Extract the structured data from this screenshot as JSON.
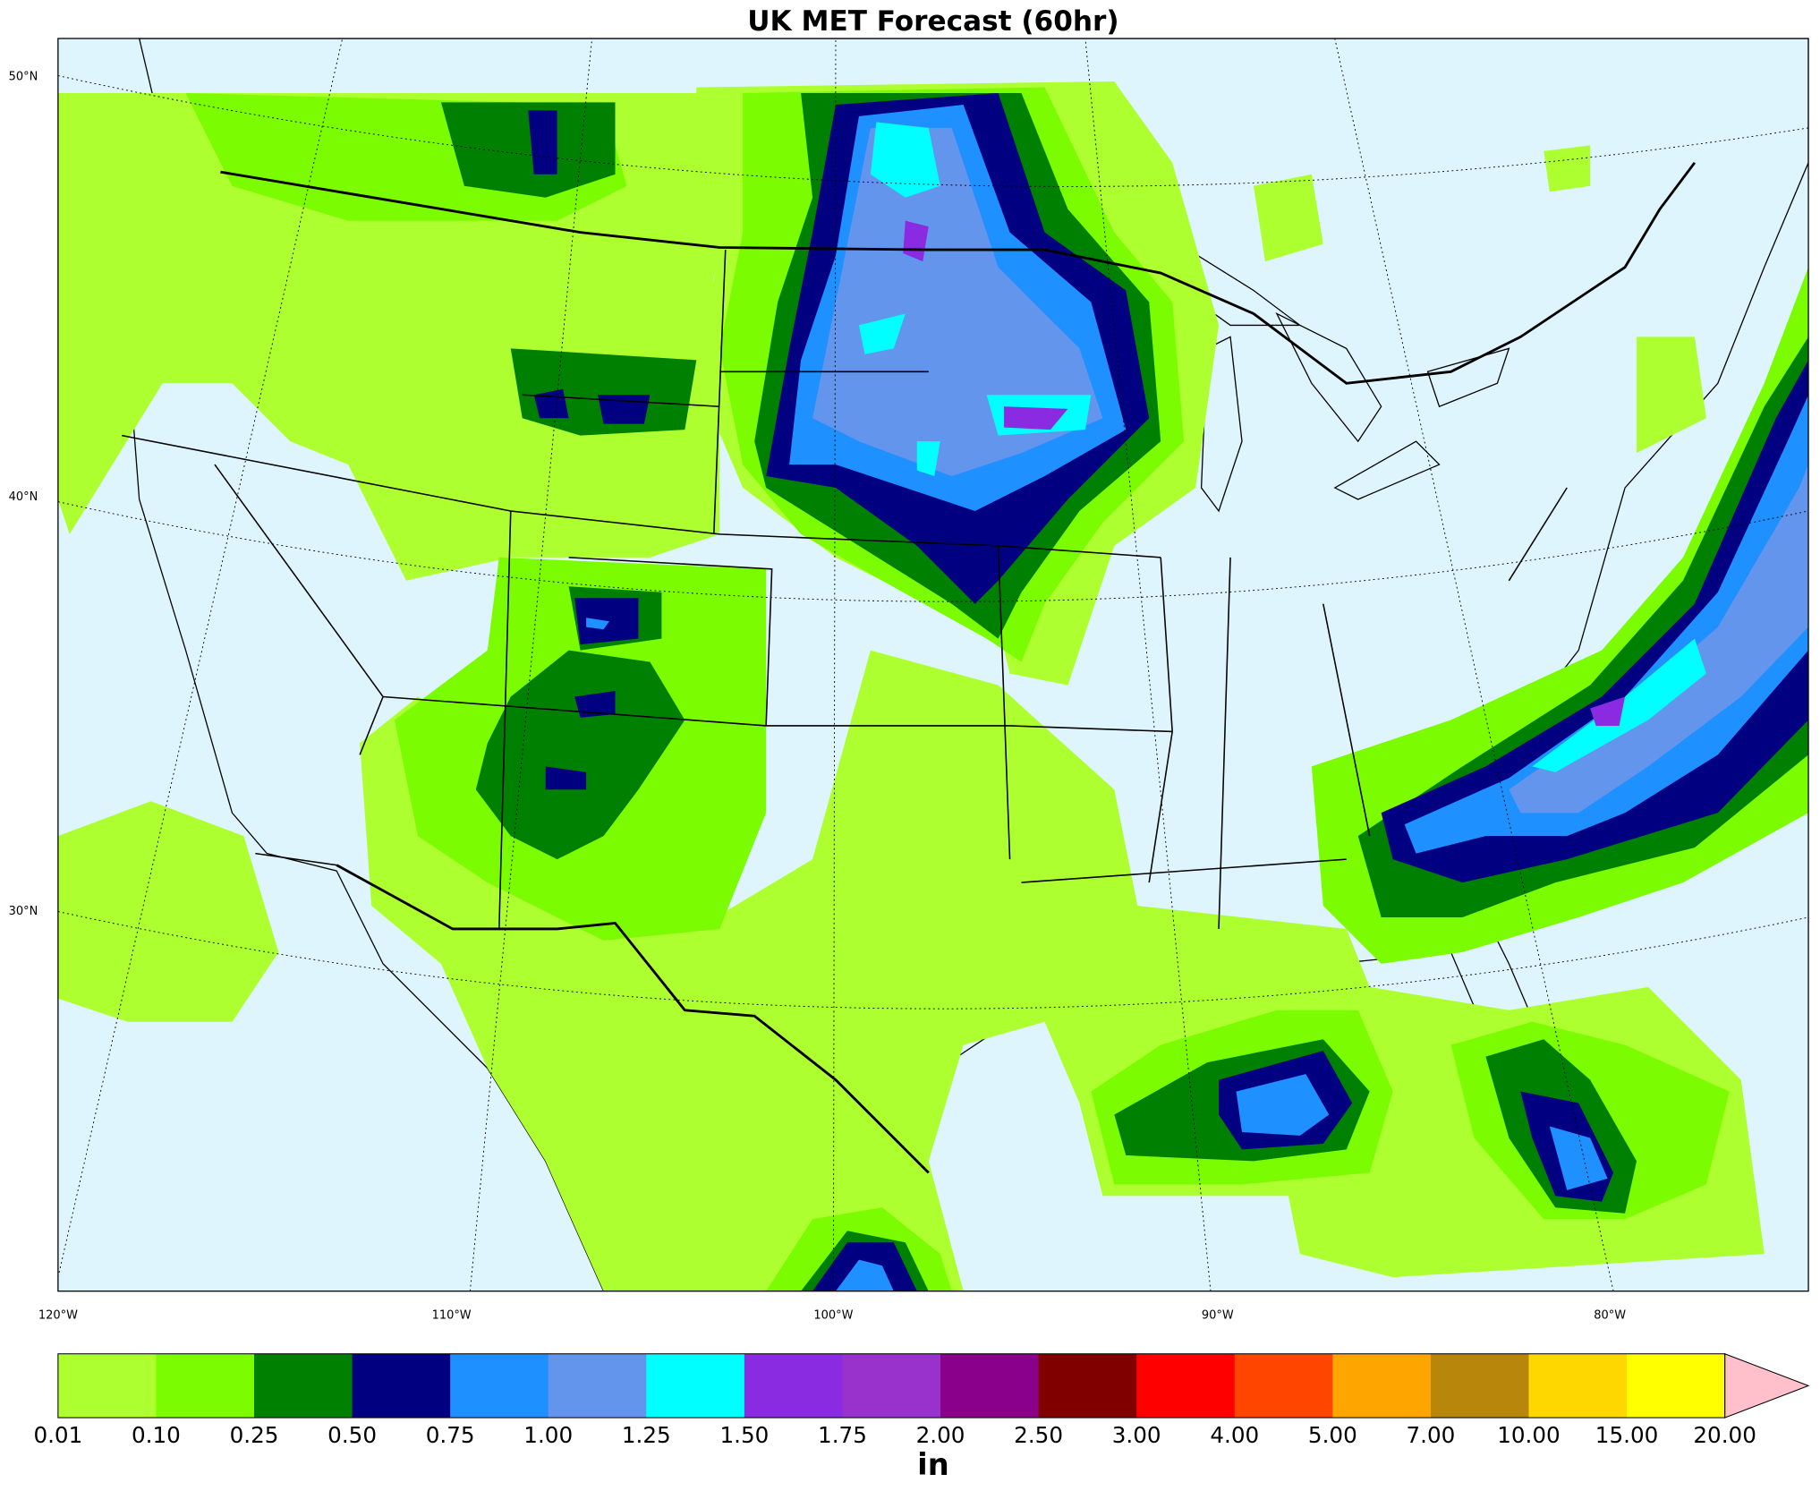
{
  "title": "UK MET Forecast (60hr)",
  "map": {
    "latitude_labels": [
      "50°N",
      "40°N",
      "30°N"
    ],
    "longitude_labels": [
      "120°W",
      "110°W",
      "100°W",
      "90°W",
      "80°W"
    ]
  },
  "colorbar": {
    "label": "in",
    "levels": [
      {
        "value": 0.01,
        "label": "0.01"
      },
      {
        "value": 0.1,
        "label": "0.10"
      },
      {
        "value": 0.25,
        "label": "0.25"
      },
      {
        "value": 0.5,
        "label": "0.50"
      },
      {
        "value": 0.75,
        "label": "0.75"
      },
      {
        "value": 1,
        "label": "1.00"
      },
      {
        "value": 1.25,
        "label": "1.25"
      },
      {
        "value": 1.5,
        "label": "1.50"
      },
      {
        "value": 1.75,
        "label": "1.75"
      },
      {
        "value": 2,
        "label": "2.00"
      },
      {
        "value": 2.5,
        "label": "2.50"
      },
      {
        "value": 3,
        "label": "3.00"
      },
      {
        "value": 4,
        "label": "4.00"
      },
      {
        "value": 5,
        "label": "5.00"
      },
      {
        "value": 7,
        "label": "7.00"
      },
      {
        "value": 10,
        "label": "10.00"
      },
      {
        "value": 15,
        "label": "15.00"
      },
      {
        "value": 20,
        "label": "20.00"
      }
    ],
    "colors": [
      "#adff2f",
      "#7cfc00",
      "#008000",
      "#000080",
      "#1e90ff",
      "#6495ed",
      "#00ffff",
      "#8a2be2",
      "#9932cc",
      "#8b008b",
      "#800000",
      "#ff0000",
      "#ff4500",
      "#ffa500",
      "#b8860b",
      "#ffd700",
      "#ffff00"
    ],
    "extend_color": "#ffc0cb"
  }
}
